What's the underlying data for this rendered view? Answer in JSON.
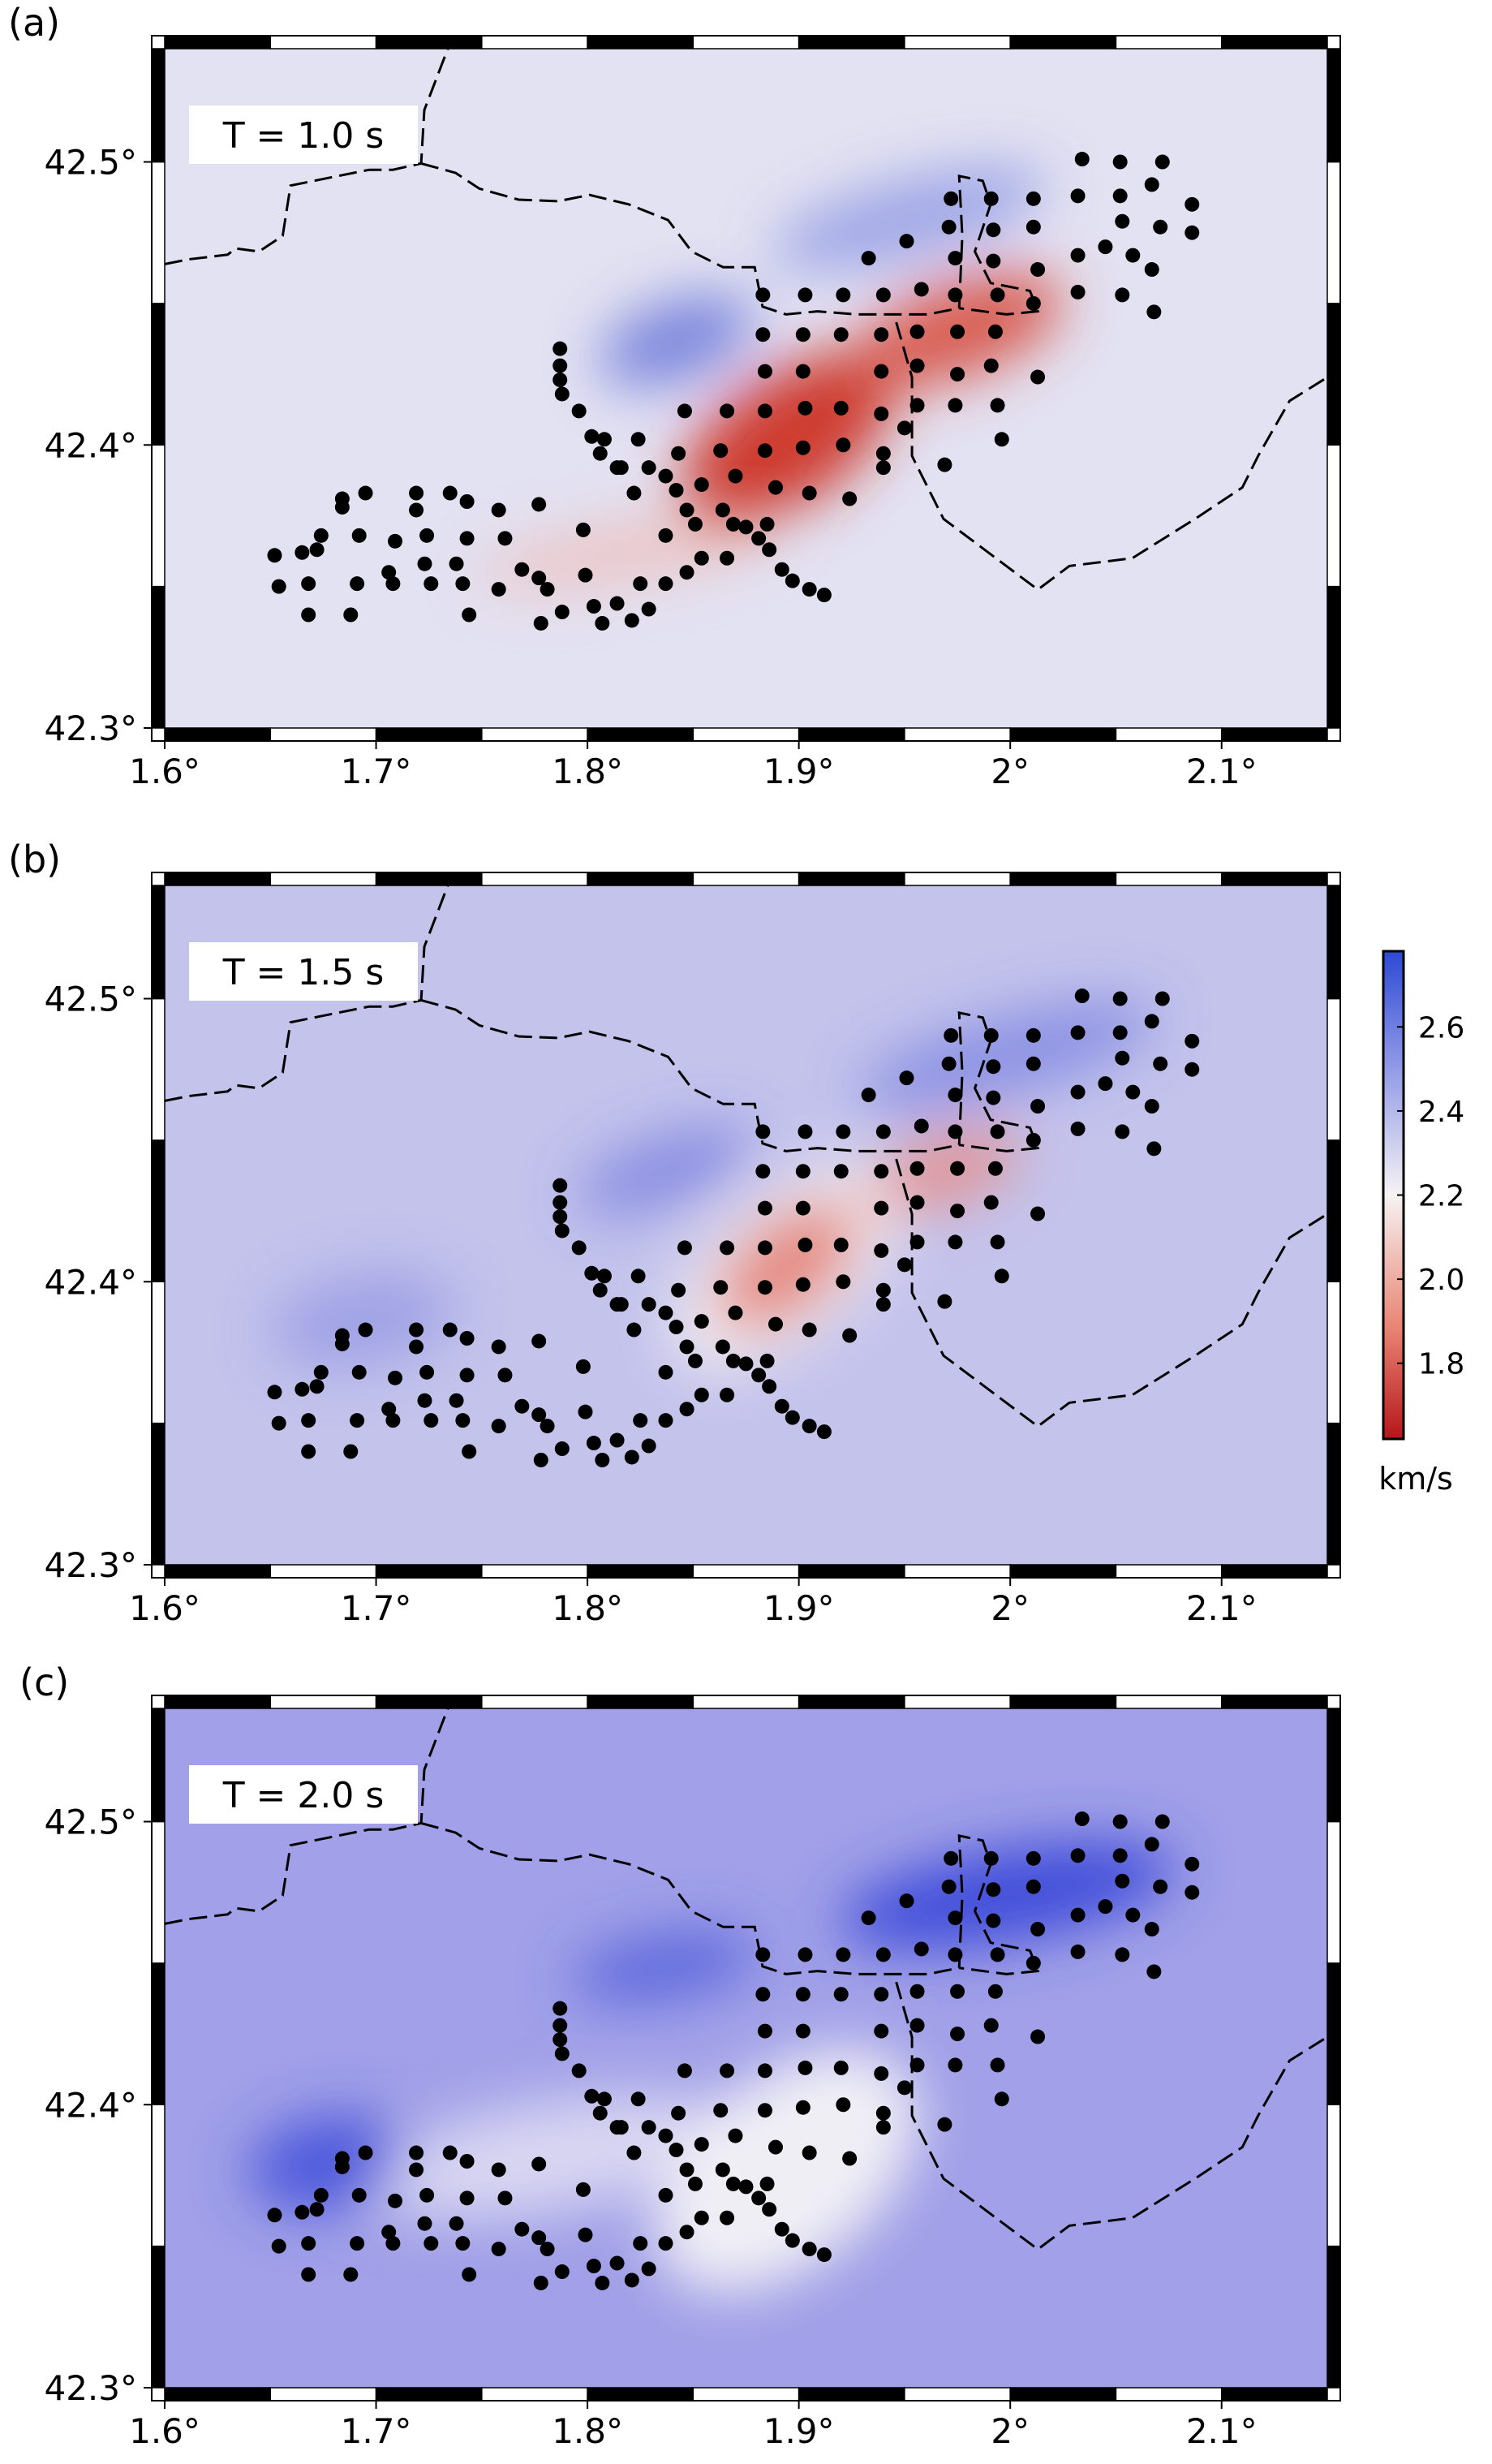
{
  "panels": [
    {
      "label": "(a)",
      "period": "T = 1.0 s"
    },
    {
      "label": "(b)",
      "period": "T = 1.5 s"
    },
    {
      "label": "(c)",
      "period": "T = 2.0 s"
    }
  ],
  "map": {
    "xlim": [
      1.6,
      2.15
    ],
    "ylim": [
      42.3,
      42.54
    ],
    "xticks": [
      {
        "value": 1.6,
        "label": "1.6°"
      },
      {
        "value": 1.7,
        "label": "1.7°"
      },
      {
        "value": 1.8,
        "label": "1.8°"
      },
      {
        "value": 1.9,
        "label": "1.9°"
      },
      {
        "value": 2,
        "label": "2°"
      },
      {
        "value": 2.1,
        "label": "2.1°"
      }
    ],
    "yticks": [
      {
        "value": 42.3,
        "label": "42.3°"
      },
      {
        "value": 42.4,
        "label": "42.4°"
      },
      {
        "value": 42.5,
        "label": "42.5°"
      }
    ]
  },
  "stations": {
    "lon": [
      2.034,
      2.052,
      2.072,
      2.086,
      2.086,
      2.032,
      2.052,
      2.067,
      2.011,
      1.991,
      1.972,
      1.971,
      1.992,
      2.011,
      2.053,
      2.071,
      2.045,
      2.032,
      2.058,
      2.067,
      1.992,
      1.974,
      1.951,
      1.933,
      1.958,
      1.94,
      1.921,
      1.903,
      1.883,
      2.013,
      2.053,
      2.068,
      2.032,
      1.974,
      1.994,
      2.011,
      1.975,
      1.993,
      2.013,
      1.991,
      1.975,
      1.956,
      1.956,
      1.939,
      1.92,
      1.902,
      1.883,
      1.939,
      1.956,
      1.974,
      1.994,
      1.996,
      1.939,
      1.94,
      1.92,
      1.902,
      1.884,
      1.866,
      1.884,
      1.903,
      1.921,
      1.902,
      1.884,
      1.863,
      1.846,
      1.824,
      1.843,
      1.829,
      1.814,
      1.808,
      1.822,
      1.837,
      1.842,
      1.854,
      1.87,
      1.889,
      1.905,
      1.924,
      1.95,
      1.969,
      1.847,
      1.864,
      1.885,
      1.869,
      1.851,
      1.837,
      1.854,
      1.881,
      1.886,
      1.892,
      1.897,
      1.905,
      1.912,
      1.94,
      1.787,
      1.787,
      1.787,
      1.788,
      1.796,
      1.802,
      1.806,
      1.816,
      1.875,
      1.866,
      1.847,
      1.837,
      1.825,
      1.803,
      1.814,
      1.829,
      1.821,
      1.807,
      1.788,
      1.781,
      1.769,
      1.758,
      1.744,
      1.741,
      1.738,
      1.723,
      1.706,
      1.709,
      1.724,
      1.743,
      1.758,
      1.777,
      1.798,
      1.799,
      1.777,
      1.761,
      1.743,
      1.719,
      1.719,
      1.695,
      1.684,
      1.672,
      1.665,
      1.652,
      1.654,
      1.668,
      1.688,
      1.668,
      1.691,
      1.708,
      1.726,
      1.674,
      1.692,
      1.684,
      1.735,
      1.778
    ],
    "lat": [
      42.501,
      42.5,
      42.5,
      42.485,
      42.475,
      42.488,
      42.488,
      42.492,
      42.487,
      42.487,
      42.487,
      42.477,
      42.476,
      42.477,
      42.479,
      42.477,
      42.47,
      42.467,
      42.467,
      42.462,
      42.465,
      42.466,
      42.472,
      42.466,
      42.455,
      42.453,
      42.453,
      42.453,
      42.453,
      42.462,
      42.453,
      42.447,
      42.454,
      42.453,
      42.453,
      42.45,
      42.44,
      42.44,
      42.424,
      42.428,
      42.425,
      42.428,
      42.414,
      42.426,
      42.439,
      42.439,
      42.439,
      42.439,
      42.44,
      42.414,
      42.414,
      42.402,
      42.411,
      42.397,
      42.413,
      42.426,
      42.426,
      42.412,
      42.412,
      42.413,
      42.4,
      42.399,
      42.398,
      42.398,
      42.412,
      42.402,
      42.397,
      42.392,
      42.392,
      42.402,
      42.383,
      42.389,
      42.384,
      42.386,
      42.389,
      42.385,
      42.383,
      42.381,
      42.406,
      42.393,
      42.377,
      42.377,
      42.372,
      42.372,
      42.372,
      42.368,
      42.36,
      42.367,
      42.363,
      42.356,
      42.352,
      42.349,
      42.347,
      42.392,
      42.434,
      42.428,
      42.423,
      42.418,
      42.412,
      42.403,
      42.397,
      42.392,
      42.371,
      42.36,
      42.355,
      42.351,
      42.351,
      42.343,
      42.344,
      42.342,
      42.338,
      42.337,
      42.341,
      42.349,
      42.356,
      42.349,
      42.34,
      42.351,
      42.358,
      42.358,
      42.355,
      42.366,
      42.368,
      42.367,
      42.377,
      42.379,
      42.37,
      42.354,
      42.353,
      42.367,
      42.38,
      42.377,
      42.383,
      42.383,
      42.378,
      42.363,
      42.362,
      42.361,
      42.35,
      42.351,
      42.34,
      42.34,
      42.351,
      42.351,
      42.351,
      42.368,
      42.368,
      42.381,
      42.383,
      42.337
    ]
  },
  "colorbar": {
    "lim": [
      1.62,
      2.78
    ],
    "ticks": [
      1.8,
      {
        "value": 2,
        "label": "2.0"
      },
      2.2,
      2.4,
      2.6
    ],
    "label": "km/s"
  }
}
